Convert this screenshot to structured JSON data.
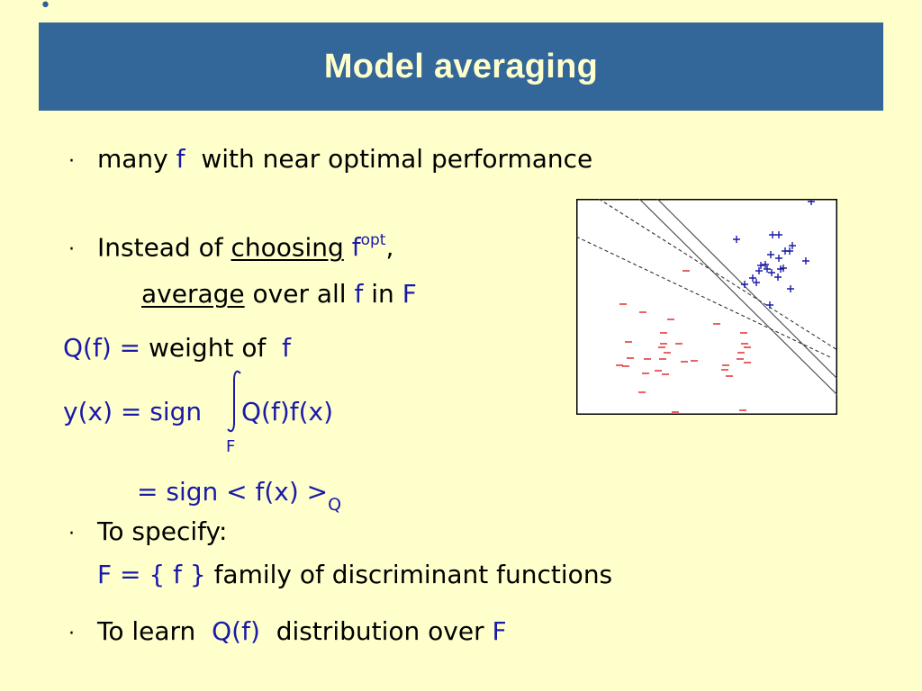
{
  "slide": {
    "title": "Model averaging",
    "bullet_glyph": "·",
    "lines": {
      "l1_a": "many",
      "l1_f": "f",
      "l1_b": "with near optimal performance",
      "l2_a": "Instead of",
      "l2_choosing": "choosing",
      "l2_f": "f",
      "l2_opt": "opt",
      "l2_comma": ",",
      "l3_average": "average",
      "l3_b": "over all",
      "l3_f": "f",
      "l3_in": "in",
      "l3_F": "F",
      "l4_a": "Q(f) =",
      "l4_b": "weight of",
      "l4_f": "f",
      "l5_a": "y(x) =  sign",
      "l5_b": "Q(f)f(x)",
      "l5_F": "F",
      "l6_a": "= sign < f(x) >",
      "l6_Q": "Q",
      "l7_a": "To specify:",
      "l8_a": "F = { f }",
      "l8_b": "family of discriminant functions",
      "l9_a": "To learn",
      "l9_b": "Q(f)",
      "l9_c": "distribution over",
      "l9_F": "F"
    }
  },
  "colors": {
    "background": "#ffffcc",
    "title_bar": "#336699",
    "title_text": "#ffffcc",
    "math_blue": "#1a1aa8",
    "plus_marks": "#1a1aa8",
    "minus_marks": "#e02020"
  },
  "chart_data": {
    "type": "scatter",
    "title": "",
    "xlabel": "",
    "ylabel": "",
    "xlim": [
      0,
      290
    ],
    "ylim": [
      0,
      240
    ],
    "grid": false,
    "series": [
      {
        "marker": "+",
        "points": [
          [
            178,
            45
          ],
          [
            218,
            40
          ],
          [
            225,
            40
          ],
          [
            240,
            52
          ],
          [
            216,
            62
          ],
          [
            232,
            58
          ],
          [
            205,
            74
          ],
          [
            210,
            73
          ],
          [
            225,
            66
          ],
          [
            237,
            58
          ],
          [
            255,
            69
          ],
          [
            196,
            88
          ],
          [
            203,
            80
          ],
          [
            212,
            78
          ],
          [
            227,
            78
          ],
          [
            230,
            77
          ],
          [
            217,
            82
          ],
          [
            187,
            95
          ],
          [
            200,
            93
          ],
          [
            224,
            87
          ],
          [
            238,
            100
          ],
          [
            215,
            118
          ],
          [
            261,
            3
          ]
        ]
      },
      {
        "marker": "-",
        "points": [
          [
            122,
            80
          ],
          [
            52,
            117
          ],
          [
            74,
            126
          ],
          [
            105,
            134
          ],
          [
            156,
            139
          ],
          [
            97,
            149
          ],
          [
            186,
            149
          ],
          [
            58,
            159
          ],
          [
            97,
            161
          ],
          [
            114,
            161
          ],
          [
            187,
            161
          ],
          [
            95,
            165
          ],
          [
            190,
            165
          ],
          [
            183,
            171
          ],
          [
            101,
            171
          ],
          [
            60,
            177
          ],
          [
            79,
            178
          ],
          [
            96,
            178
          ],
          [
            131,
            180
          ],
          [
            120,
            181
          ],
          [
            182,
            178
          ],
          [
            190,
            182
          ],
          [
            48,
            185
          ],
          [
            55,
            186
          ],
          [
            91,
            191
          ],
          [
            166,
            185
          ],
          [
            165,
            190
          ],
          [
            77,
            194
          ],
          [
            99,
            195
          ],
          [
            170,
            197
          ],
          [
            73,
            215
          ],
          [
            110,
            237
          ],
          [
            185,
            235
          ]
        ]
      }
    ],
    "boundaries": [
      {
        "style": "solid",
        "x": [
          70,
          290
        ],
        "y": [
          0,
          218
        ]
      },
      {
        "style": "solid",
        "x": [
          90,
          290
        ],
        "y": [
          0,
          200
        ]
      },
      {
        "style": "dashed",
        "x": [
          25,
          290
        ],
        "y": [
          0,
          168
        ]
      },
      {
        "style": "dashed",
        "x": [
          0,
          282
        ],
        "y": [
          42,
          176
        ]
      }
    ]
  }
}
